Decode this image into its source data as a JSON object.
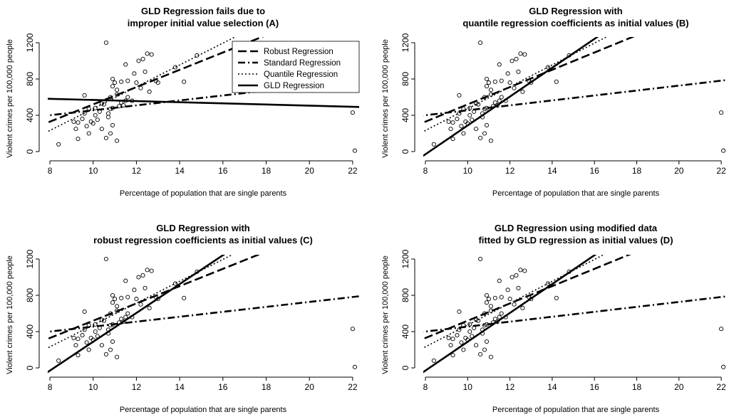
{
  "chart_data": [
    {
      "type": "scatter",
      "title": [
        "GLD Regression fails due to",
        "improper initial value selection (A)"
      ],
      "xlabel": "Percentage of population that are single parents",
      "ylabel": "Violent crimes per 100,000 people",
      "xlim": [
        7.9,
        22.3
      ],
      "ylim": [
        0,
        1230
      ],
      "xticks": [
        8,
        10,
        12,
        14,
        16,
        18,
        20,
        22
      ],
      "yticks": [
        0,
        400,
        800,
        1200
      ],
      "points": "shared",
      "lines": [
        {
          "name": "Robust Regression",
          "style": "longdash",
          "intercept": -433,
          "slope": 95.3
        },
        {
          "name": "Standard Regression",
          "style": "dashdot",
          "intercept": 183,
          "slope": 27.2
        },
        {
          "name": "Quantile Regression",
          "style": "dotted",
          "intercept": -731,
          "slope": 120.4
        },
        {
          "name": "GLD Regression",
          "style": "solid",
          "intercept": 632,
          "slope": -6.3
        }
      ],
      "legend": {
        "position": "top-right",
        "entries": [
          "Robust Regression",
          "Standard Regression",
          "Quantile Regression",
          "GLD Regression"
        ]
      }
    },
    {
      "type": "scatter",
      "title": [
        "GLD Regression with",
        "quantile regression coefficients as initial values (B)"
      ],
      "xlabel": "Percentage of population that are single parents",
      "ylabel": "Violent crimes per 100,000 people",
      "xlim": [
        7.9,
        22.3
      ],
      "ylim": [
        0,
        1230
      ],
      "xticks": [
        8,
        10,
        12,
        14,
        16,
        18,
        20,
        22
      ],
      "yticks": [
        0,
        400,
        800,
        1200
      ],
      "points": "shared",
      "lines": [
        {
          "name": "Robust Regression",
          "style": "longdash",
          "intercept": -433,
          "slope": 95.3
        },
        {
          "name": "Standard Regression",
          "style": "dashdot",
          "intercept": 183,
          "slope": 27.2
        },
        {
          "name": "Quantile Regression",
          "style": "dotted",
          "intercept": -731,
          "slope": 120.4
        },
        {
          "name": "GLD Regression",
          "style": "solid",
          "intercept": -1302,
          "slope": 159
        }
      ]
    },
    {
      "type": "scatter",
      "title": [
        "GLD Regression with",
        "robust regression coefficients as initial values (C)"
      ],
      "xlabel": "Percentage of population that are single parents",
      "ylabel": "Violent crimes per 100,000 people",
      "xlim": [
        7.9,
        22.3
      ],
      "ylim": [
        0,
        1230
      ],
      "xticks": [
        8,
        10,
        12,
        14,
        16,
        18,
        20,
        22
      ],
      "yticks": [
        0,
        400,
        800,
        1200
      ],
      "points": "shared",
      "lines": [
        {
          "name": "Robust Regression",
          "style": "longdash",
          "intercept": -433,
          "slope": 95.3
        },
        {
          "name": "Standard Regression",
          "style": "dashdot",
          "intercept": 183,
          "slope": 27.2
        },
        {
          "name": "Quantile Regression",
          "style": "dotted",
          "intercept": -731,
          "slope": 120.4
        },
        {
          "name": "GLD Regression",
          "style": "solid",
          "intercept": -1302,
          "slope": 159
        }
      ]
    },
    {
      "type": "scatter",
      "title": [
        "GLD Regression using modified data",
        "fitted by GLD regression as initial values (D)"
      ],
      "xlabel": "Percentage of population that are single parents",
      "ylabel": "Violent crimes per 100,000 people",
      "xlim": [
        7.9,
        22.3
      ],
      "ylim": [
        0,
        1230
      ],
      "xticks": [
        8,
        10,
        12,
        14,
        16,
        18,
        20,
        22
      ],
      "yticks": [
        0,
        400,
        800,
        1200
      ],
      "points": "shared",
      "lines": [
        {
          "name": "Robust Regression",
          "style": "longdash",
          "intercept": -433,
          "slope": 95.3
        },
        {
          "name": "Standard Regression",
          "style": "dashdot",
          "intercept": 183,
          "slope": 27.2
        },
        {
          "name": "Quantile Regression",
          "style": "dotted",
          "intercept": -731,
          "slope": 120.4
        },
        {
          "name": "GLD Regression",
          "style": "solid",
          "intercept": -1302,
          "slope": 159
        }
      ]
    }
  ],
  "scatter_points": [
    [
      8.4,
      80
    ],
    [
      9.1,
      330
    ],
    [
      9.2,
      250
    ],
    [
      9.3,
      140
    ],
    [
      9.3,
      320
    ],
    [
      9.5,
      360
    ],
    [
      9.6,
      420
    ],
    [
      9.6,
      620
    ],
    [
      9.7,
      280
    ],
    [
      9.8,
      200
    ],
    [
      9.8,
      470
    ],
    [
      9.9,
      330
    ],
    [
      10.0,
      310
    ],
    [
      10.1,
      400
    ],
    [
      10.1,
      480
    ],
    [
      10.2,
      350
    ],
    [
      10.3,
      440
    ],
    [
      10.4,
      530
    ],
    [
      10.4,
      250
    ],
    [
      10.5,
      520
    ],
    [
      10.6,
      1200
    ],
    [
      10.6,
      150
    ],
    [
      10.7,
      380
    ],
    [
      10.7,
      420
    ],
    [
      10.8,
      200
    ],
    [
      10.8,
      470
    ],
    [
      10.8,
      600
    ],
    [
      10.9,
      720
    ],
    [
      10.9,
      800
    ],
    [
      10.9,
      290
    ],
    [
      10.9,
      480
    ],
    [
      11.0,
      760
    ],
    [
      11.1,
      680
    ],
    [
      11.1,
      630
    ],
    [
      11.1,
      120
    ],
    [
      11.2,
      500
    ],
    [
      11.3,
      540
    ],
    [
      11.3,
      770
    ],
    [
      11.4,
      510
    ],
    [
      11.5,
      560
    ],
    [
      11.5,
      960
    ],
    [
      11.6,
      780
    ],
    [
      11.6,
      600
    ],
    [
      11.8,
      560
    ],
    [
      11.9,
      860
    ],
    [
      12.0,
      760
    ],
    [
      12.1,
      1000
    ],
    [
      12.2,
      700
    ],
    [
      12.3,
      1020
    ],
    [
      12.4,
      880
    ],
    [
      12.5,
      1080
    ],
    [
      12.6,
      660
    ],
    [
      12.7,
      1070
    ],
    [
      12.9,
      780
    ],
    [
      13.0,
      760
    ],
    [
      13.8,
      930
    ],
    [
      14.2,
      770
    ],
    [
      14.8,
      1060
    ],
    [
      22.0,
      430
    ],
    [
      22.1,
      10
    ]
  ]
}
